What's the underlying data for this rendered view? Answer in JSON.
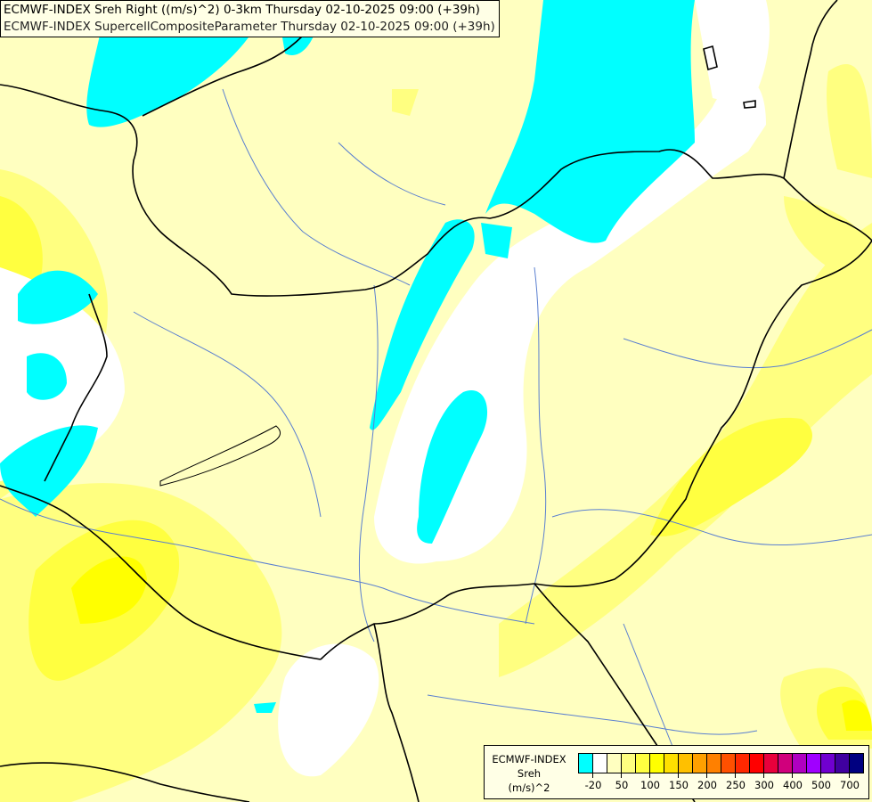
{
  "header": {
    "line1": "ECMWF-INDEX Sreh Right ((m/s)^2) 0-3km Thursday 02-10-2025 09:00 (+39h)",
    "line2": "ECMWF-INDEX SupercellCompositeParameter Thursday 02-10-2025 09:00 (+39h)"
  },
  "legend": {
    "title": "ECMWF-INDEX",
    "variable": "Sreh",
    "unit": "(m/s)^2",
    "colors": [
      "#00ffff",
      "#ffffff",
      "#ffffc0",
      "#ffff80",
      "#ffff40",
      "#ffff00",
      "#ffe000",
      "#ffc000",
      "#ffa000",
      "#ff8000",
      "#ff5000",
      "#ff2800",
      "#ff0000",
      "#e8003c",
      "#d0007c",
      "#b000c0",
      "#a000ff",
      "#7000d0",
      "#4000a0",
      "#000080"
    ],
    "labels": [
      "-20",
      "50",
      "100",
      "150",
      "200",
      "250",
      "300",
      "400",
      "500",
      "700"
    ]
  },
  "map_colors": {
    "border": "#000000",
    "river": "#5a7fd0",
    "cyan": "#00ffff",
    "white": "#ffffff",
    "pale": "#ffffc0",
    "light": "#ffff80",
    "mid": "#ffff40",
    "strong": "#ffff00"
  }
}
